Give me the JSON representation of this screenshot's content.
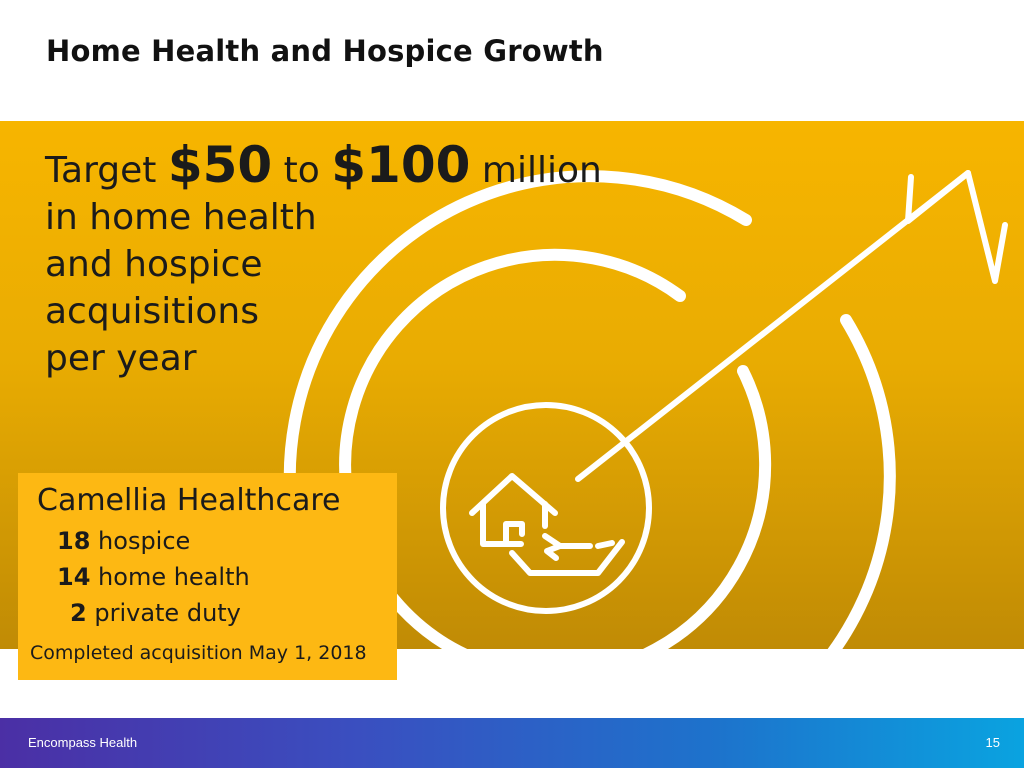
{
  "slide": {
    "title": "Home Health and Hospice Growth"
  },
  "headline": {
    "word_target": "Target",
    "amount_low": "$50",
    "word_to": "to",
    "amount_high": "$100",
    "word_million": "million",
    "line2": "in home health",
    "line3": "and hospice",
    "line4": "acquisitions",
    "line5": "per year"
  },
  "callout": {
    "name": "Camellia Healthcare",
    "items": [
      {
        "count": "18",
        "label": "hospice"
      },
      {
        "count": "14",
        "label": "home health"
      },
      {
        "count": "2",
        "label": "private duty"
      }
    ],
    "completed": "Completed acquisition May 1, 2018"
  },
  "graphic": {
    "icon": "target-with-house-in-hand-icon"
  },
  "footer": {
    "brand": "Encompass Health",
    "page_number": "15"
  },
  "colors": {
    "banner_top": "#f7b500",
    "banner_bottom": "#c08b05",
    "callout_bg": "#fdb813",
    "footer_start": "#4b2fa5",
    "footer_end": "#0aa3e0"
  }
}
